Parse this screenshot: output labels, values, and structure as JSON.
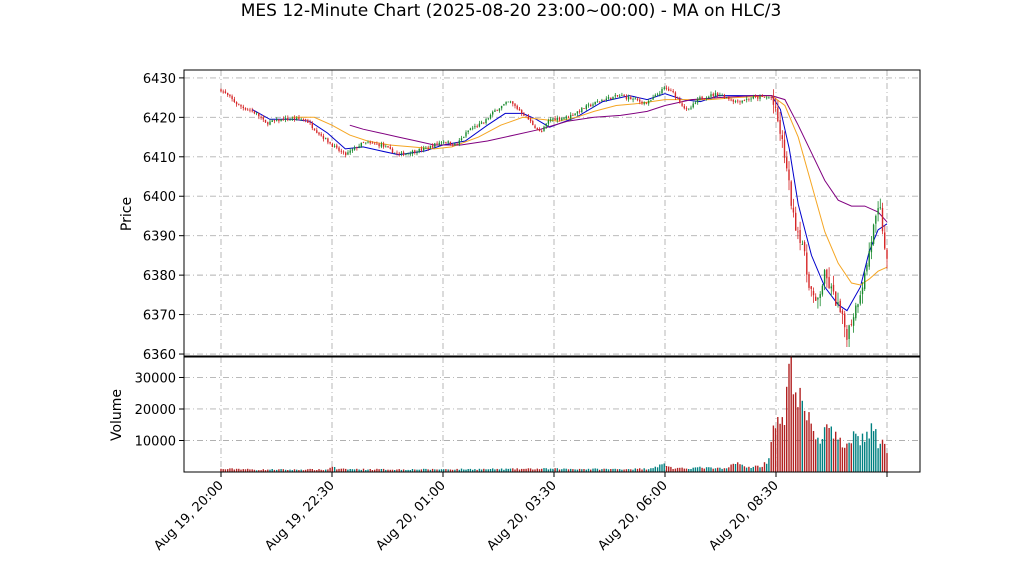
{
  "chart_data": {
    "type": "candlestick",
    "title": "MES 12-Minute Chart (2025-08-20 23:00~00:00) - MA on HLC/3",
    "xlabel": "",
    "price_panel": {
      "ylabel": "Price",
      "ylim": [
        6359.5,
        6432
      ],
      "yticks": [
        6360,
        6370,
        6380,
        6390,
        6400,
        6410,
        6420,
        6430
      ],
      "grid": true
    },
    "volume_panel": {
      "ylabel": "Volume",
      "ylim": [
        0,
        36500
      ],
      "yticks": [
        10000,
        20000,
        30000
      ],
      "grid": true
    },
    "x_ticks": [
      {
        "index": 0,
        "label": "Aug 19, 20:00"
      },
      {
        "index": 12.5,
        "label": "Aug 19, 22:30"
      },
      {
        "index": 25,
        "label": "Aug 20, 01:00"
      },
      {
        "index": 37.5,
        "label": "Aug 20, 03:30"
      },
      {
        "index": 50,
        "label": "Aug 20, 06:00"
      },
      {
        "index": 62.5,
        "label": "Aug 20, 08:30"
      },
      {
        "index": 75,
        "label": ""
      }
    ],
    "bar_interval_minutes": 12,
    "close_keypoints": [
      [
        0,
        6427
      ],
      [
        2,
        6423
      ],
      [
        4,
        6421
      ],
      [
        5,
        6418.5
      ],
      [
        7,
        6419.5
      ],
      [
        9.5,
        6419.5
      ],
      [
        11,
        6416
      ],
      [
        13,
        6412
      ],
      [
        14,
        6410.5
      ],
      [
        16,
        6413.5
      ],
      [
        18,
        6413
      ],
      [
        20,
        6410.5
      ],
      [
        23,
        6412
      ],
      [
        25,
        6414
      ],
      [
        26.5,
        6413
      ],
      [
        28,
        6417
      ],
      [
        29.5,
        6418.5
      ],
      [
        31,
        6422
      ],
      [
        32.5,
        6424
      ],
      [
        34,
        6421
      ],
      [
        36,
        6416
      ],
      [
        37,
        6419.5
      ],
      [
        39,
        6420
      ],
      [
        41,
        6422.5
      ],
      [
        43,
        6424.5
      ],
      [
        45,
        6425.5
      ],
      [
        48,
        6423.5
      ],
      [
        50,
        6427.5
      ],
      [
        51,
        6426
      ],
      [
        52.5,
        6421.5
      ],
      [
        54,
        6425
      ],
      [
        56,
        6426
      ],
      [
        58,
        6424
      ],
      [
        60,
        6425
      ],
      [
        62,
        6425
      ],
      [
        62.8,
        6418
      ],
      [
        63.5,
        6410
      ],
      [
        64.5,
        6394
      ],
      [
        65.5,
        6388
      ],
      [
        66,
        6380
      ],
      [
        67,
        6372
      ],
      [
        68,
        6380
      ],
      [
        69.5,
        6372
      ],
      [
        70.5,
        6365
      ],
      [
        71.5,
        6372
      ],
      [
        72.5,
        6380
      ],
      [
        73.5,
        6392
      ],
      [
        74.2,
        6397
      ],
      [
        75,
        6383
      ]
    ],
    "moving_averages": [
      {
        "color": "#0000cc",
        "values": [
          [
            3.5,
            6422
          ],
          [
            5.5,
            6419.5
          ],
          [
            8,
            6419.5
          ],
          [
            10,
            6419
          ],
          [
            12,
            6416
          ],
          [
            14,
            6412
          ],
          [
            16,
            6412.5
          ],
          [
            18,
            6411.5
          ],
          [
            20,
            6410.5
          ],
          [
            23,
            6411.5
          ],
          [
            25,
            6413
          ],
          [
            27.5,
            6414
          ],
          [
            30,
            6418
          ],
          [
            32,
            6421
          ],
          [
            34,
            6421
          ],
          [
            35.5,
            6419.5
          ],
          [
            37,
            6417.5
          ],
          [
            40,
            6420
          ],
          [
            43,
            6424
          ],
          [
            46,
            6425.5
          ],
          [
            48,
            6424.5
          ],
          [
            50,
            6426
          ],
          [
            52,
            6424.5
          ],
          [
            54,
            6424
          ],
          [
            56,
            6425.5
          ],
          [
            60,
            6425.5
          ],
          [
            62,
            6425.5
          ],
          [
            63,
            6422
          ],
          [
            64,
            6412
          ],
          [
            65,
            6398
          ],
          [
            66.5,
            6385
          ],
          [
            68,
            6377
          ],
          [
            69.5,
            6372.5
          ],
          [
            70.5,
            6371
          ],
          [
            72,
            6377
          ],
          [
            73,
            6386
          ],
          [
            74,
            6391.5
          ],
          [
            75,
            6393
          ]
        ]
      },
      {
        "color": "#f5a623",
        "values": [
          [
            8,
            6420
          ],
          [
            10.5,
            6420
          ],
          [
            12.5,
            6418
          ],
          [
            14.5,
            6415.5
          ],
          [
            16.5,
            6414
          ],
          [
            19,
            6413
          ],
          [
            21.5,
            6412.5
          ],
          [
            24,
            6412
          ],
          [
            26,
            6412.5
          ],
          [
            29,
            6415
          ],
          [
            31.5,
            6418
          ],
          [
            34,
            6420
          ],
          [
            36,
            6419.5
          ],
          [
            38,
            6419
          ],
          [
            40,
            6420
          ],
          [
            42,
            6421.5
          ],
          [
            44.5,
            6423
          ],
          [
            47,
            6423.5
          ],
          [
            50,
            6424.5
          ],
          [
            52,
            6424.5
          ],
          [
            55,
            6424.5
          ],
          [
            58,
            6425
          ],
          [
            62,
            6425.5
          ],
          [
            63.5,
            6423
          ],
          [
            65,
            6415
          ],
          [
            66.5,
            6403
          ],
          [
            68,
            6391
          ],
          [
            69.5,
            6383
          ],
          [
            71,
            6378
          ],
          [
            72,
            6377.5
          ],
          [
            73,
            6379
          ],
          [
            74,
            6381
          ],
          [
            75,
            6382
          ]
        ]
      },
      {
        "color": "#800080",
        "values": [
          [
            14.5,
            6418
          ],
          [
            16,
            6417
          ],
          [
            18,
            6416
          ],
          [
            20,
            6415
          ],
          [
            22,
            6414
          ],
          [
            24,
            6413
          ],
          [
            27,
            6413
          ],
          [
            30,
            6414
          ],
          [
            33,
            6415.5
          ],
          [
            36,
            6417
          ],
          [
            39,
            6419
          ],
          [
            42,
            6420
          ],
          [
            45,
            6420.5
          ],
          [
            48,
            6421.5
          ],
          [
            50,
            6423
          ],
          [
            53,
            6424.5
          ],
          [
            56,
            6425
          ],
          [
            60,
            6425.5
          ],
          [
            62,
            6425.5
          ],
          [
            63.5,
            6424.5
          ],
          [
            65,
            6418
          ],
          [
            66.5,
            6411
          ],
          [
            68,
            6404
          ],
          [
            69.5,
            6399
          ],
          [
            71,
            6397.5
          ],
          [
            72.5,
            6397.5
          ],
          [
            74,
            6396
          ],
          [
            75,
            6393.5
          ]
        ]
      }
    ],
    "volume_keypoints": [
      [
        0,
        900
      ],
      [
        2,
        1000
      ],
      [
        4,
        700
      ],
      [
        6,
        800
      ],
      [
        8,
        700
      ],
      [
        10,
        800
      ],
      [
        12,
        700
      ],
      [
        12.5,
        2000
      ],
      [
        13,
        900
      ],
      [
        20,
        800
      ],
      [
        30,
        900
      ],
      [
        37,
        1000
      ],
      [
        44,
        900
      ],
      [
        48,
        1000
      ],
      [
        50,
        2500
      ],
      [
        51,
        1000
      ],
      [
        54,
        1400
      ],
      [
        57,
        1000
      ],
      [
        58,
        3500
      ],
      [
        59,
        1400
      ],
      [
        61,
        2000
      ],
      [
        61.8,
        4500
      ],
      [
        62.2,
        18000
      ],
      [
        62.8,
        14000
      ],
      [
        63.5,
        17000
      ],
      [
        64,
        30000
      ],
      [
        64.3,
        35000
      ],
      [
        64.8,
        25000
      ],
      [
        65.5,
        20000
      ],
      [
        66,
        17000
      ],
      [
        66.5,
        14000
      ],
      [
        67,
        12000
      ],
      [
        67.5,
        10000
      ],
      [
        68,
        14000
      ],
      [
        69,
        11000
      ],
      [
        70,
        8000
      ],
      [
        71,
        12000
      ],
      [
        72,
        10500
      ],
      [
        73,
        12000
      ],
      [
        73.5,
        15000
      ],
      [
        74,
        7000
      ],
      [
        74.5,
        13000
      ],
      [
        75,
        5000
      ]
    ],
    "colors": {
      "up": "#1a8a2e",
      "down": "#d62728",
      "volume_up": "#008080",
      "volume_down": "#b22222",
      "grid": "#b0b0b0"
    }
  }
}
